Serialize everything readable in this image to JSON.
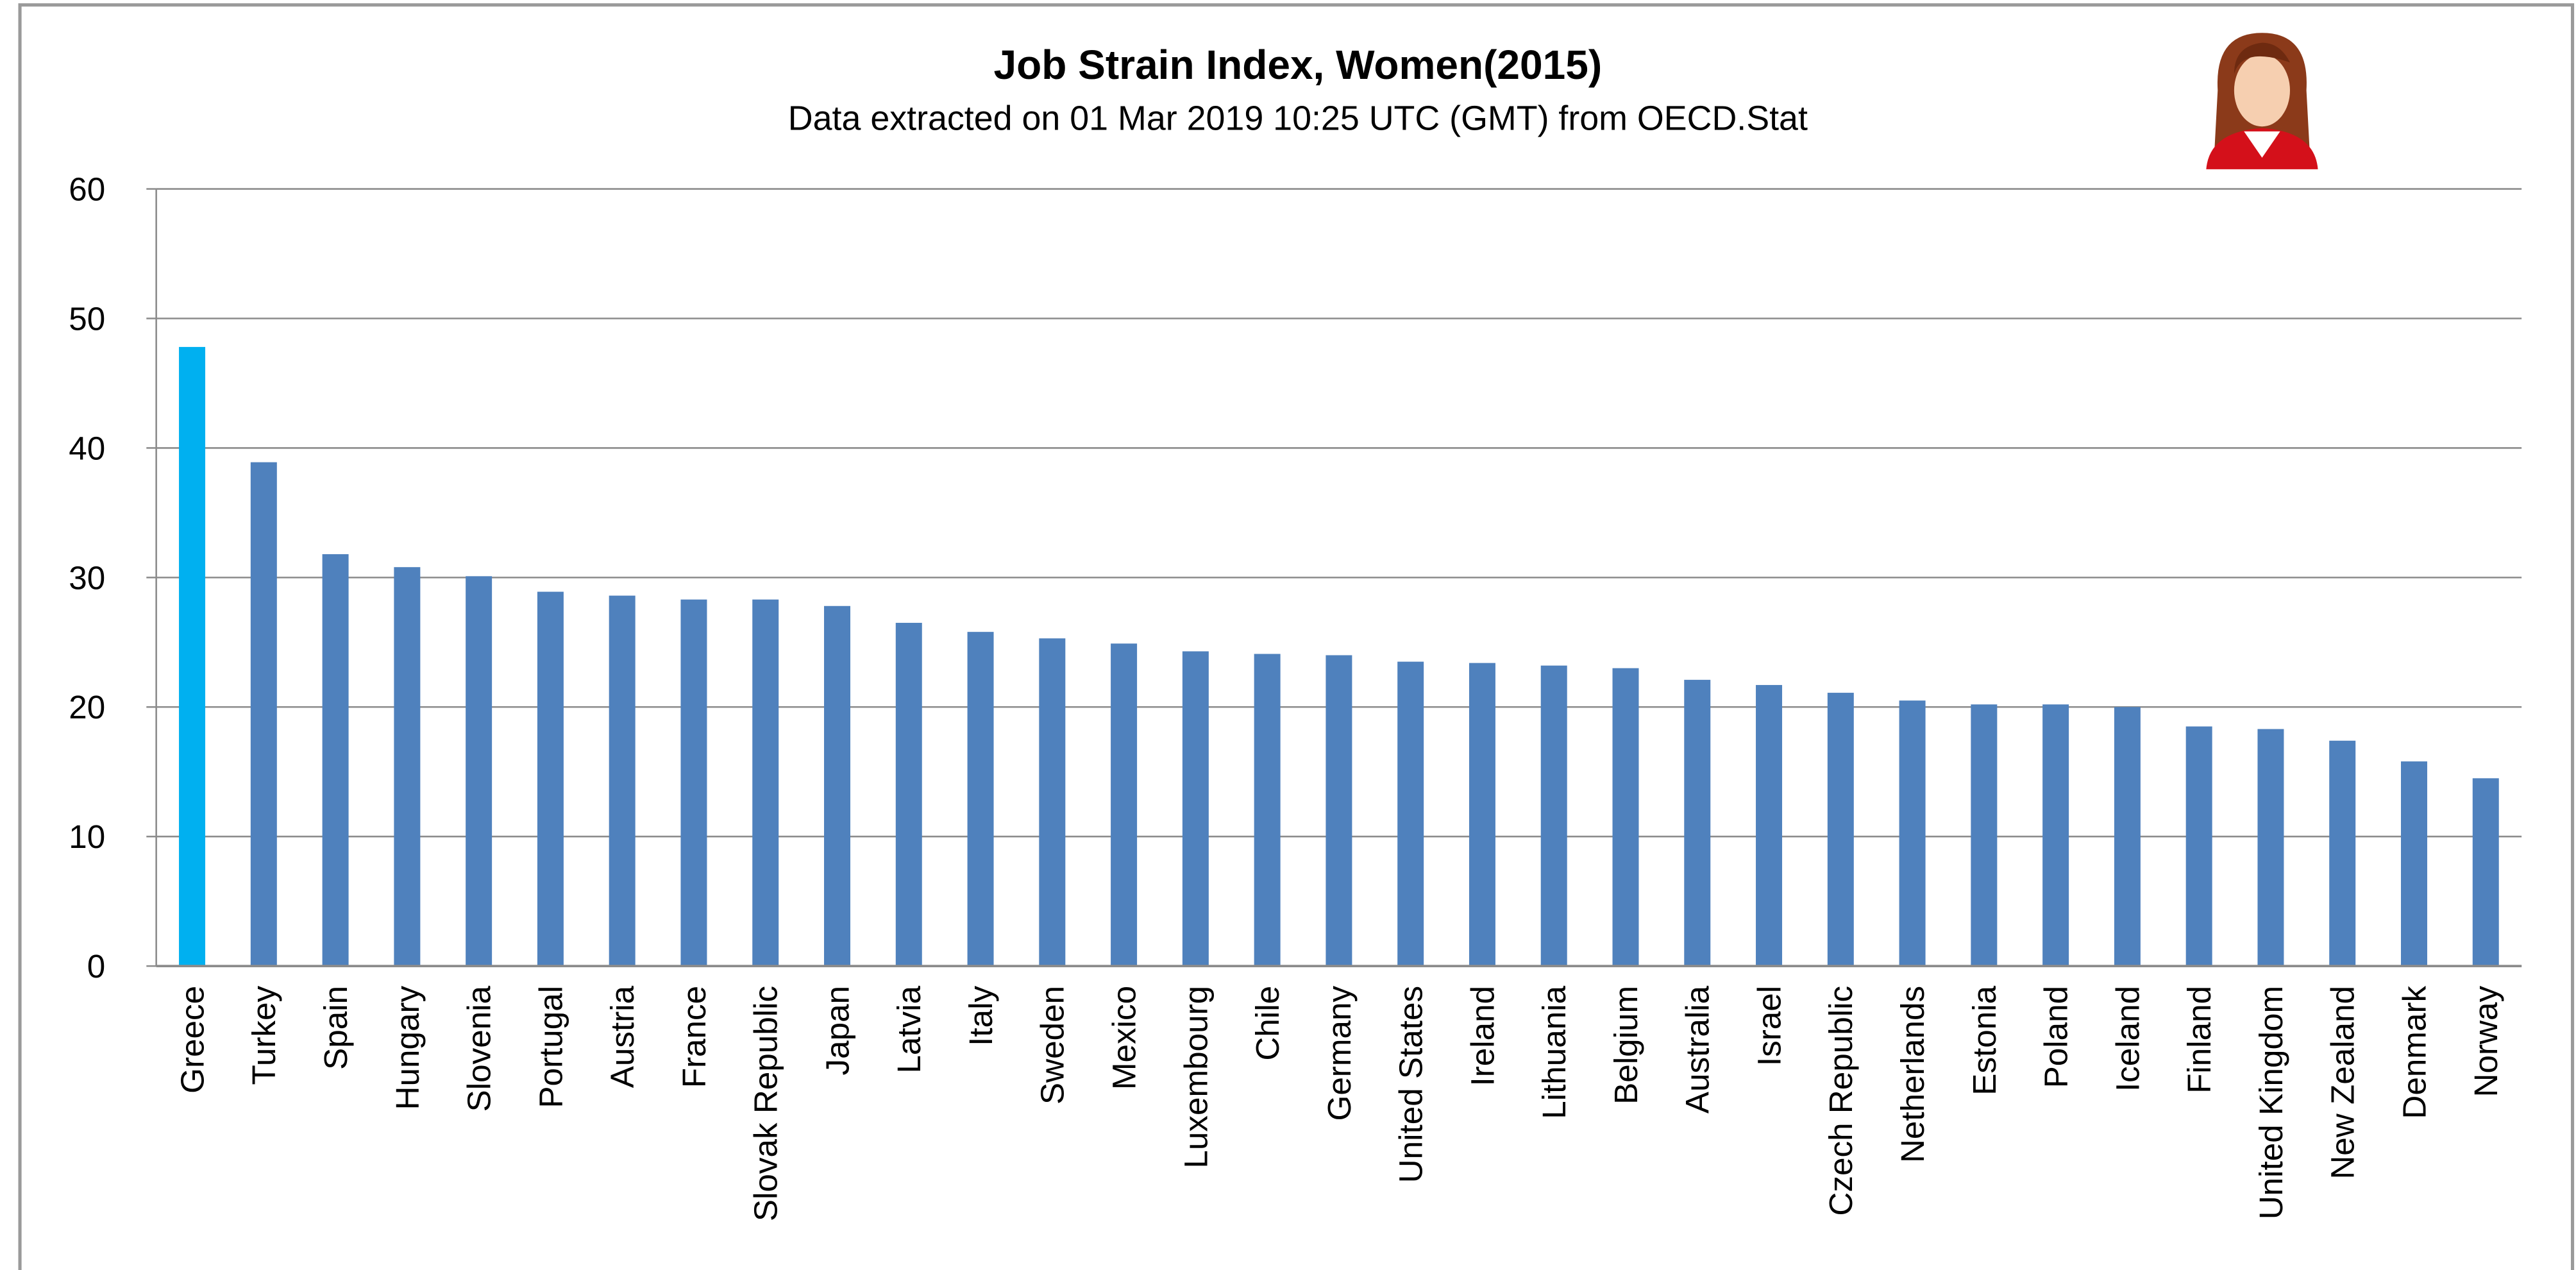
{
  "chart_data": {
    "type": "bar",
    "title": "Job Strain Index, Women(2015)",
    "subtitle": "Data extracted on 01 Mar 2019 10:25 UTC (GMT) from OECD.Stat",
    "categories": [
      "Greece",
      "Turkey",
      "Spain",
      "Hungary",
      "Slovenia",
      "Portugal",
      "Austria",
      "France",
      "Slovak Republic",
      "Japan",
      "Latvia",
      "Italy",
      "Sweden",
      "Mexico",
      "Luxembourg",
      "Chile",
      "Germany",
      "United States",
      "Ireland",
      "Lithuania",
      "Belgium",
      "Australia",
      "Israel",
      "Czech Republic",
      "Netherlands",
      "Estonia",
      "Poland",
      "Iceland",
      "Finland",
      "United Kingdom",
      "New Zealand",
      "Denmark",
      "Norway"
    ],
    "values": [
      47.8,
      38.9,
      31.8,
      30.8,
      30.1,
      28.9,
      28.6,
      28.3,
      28.3,
      27.8,
      26.5,
      25.8,
      25.3,
      24.9,
      24.3,
      24.1,
      24.0,
      23.5,
      23.4,
      23.2,
      23.0,
      22.1,
      21.7,
      21.1,
      20.5,
      20.2,
      20.2,
      20.0,
      18.5,
      18.3,
      17.4,
      15.8,
      14.5
    ],
    "colors": [
      "#00b0f0",
      "#4f81bd",
      "#4f81bd",
      "#4f81bd",
      "#4f81bd",
      "#4f81bd",
      "#4f81bd",
      "#4f81bd",
      "#4f81bd",
      "#4f81bd",
      "#4f81bd",
      "#4f81bd",
      "#4f81bd",
      "#4f81bd",
      "#4f81bd",
      "#4f81bd",
      "#4f81bd",
      "#4f81bd",
      "#4f81bd",
      "#4f81bd",
      "#4f81bd",
      "#4f81bd",
      "#4f81bd",
      "#4f81bd",
      "#4f81bd",
      "#4f81bd",
      "#4f81bd",
      "#4f81bd",
      "#4f81bd",
      "#4f81bd",
      "#4f81bd",
      "#4f81bd",
      "#4f81bd"
    ],
    "ylim": [
      0,
      60
    ],
    "yticks": [
      0,
      10,
      20,
      30,
      40,
      50,
      60
    ],
    "grid": true
  }
}
